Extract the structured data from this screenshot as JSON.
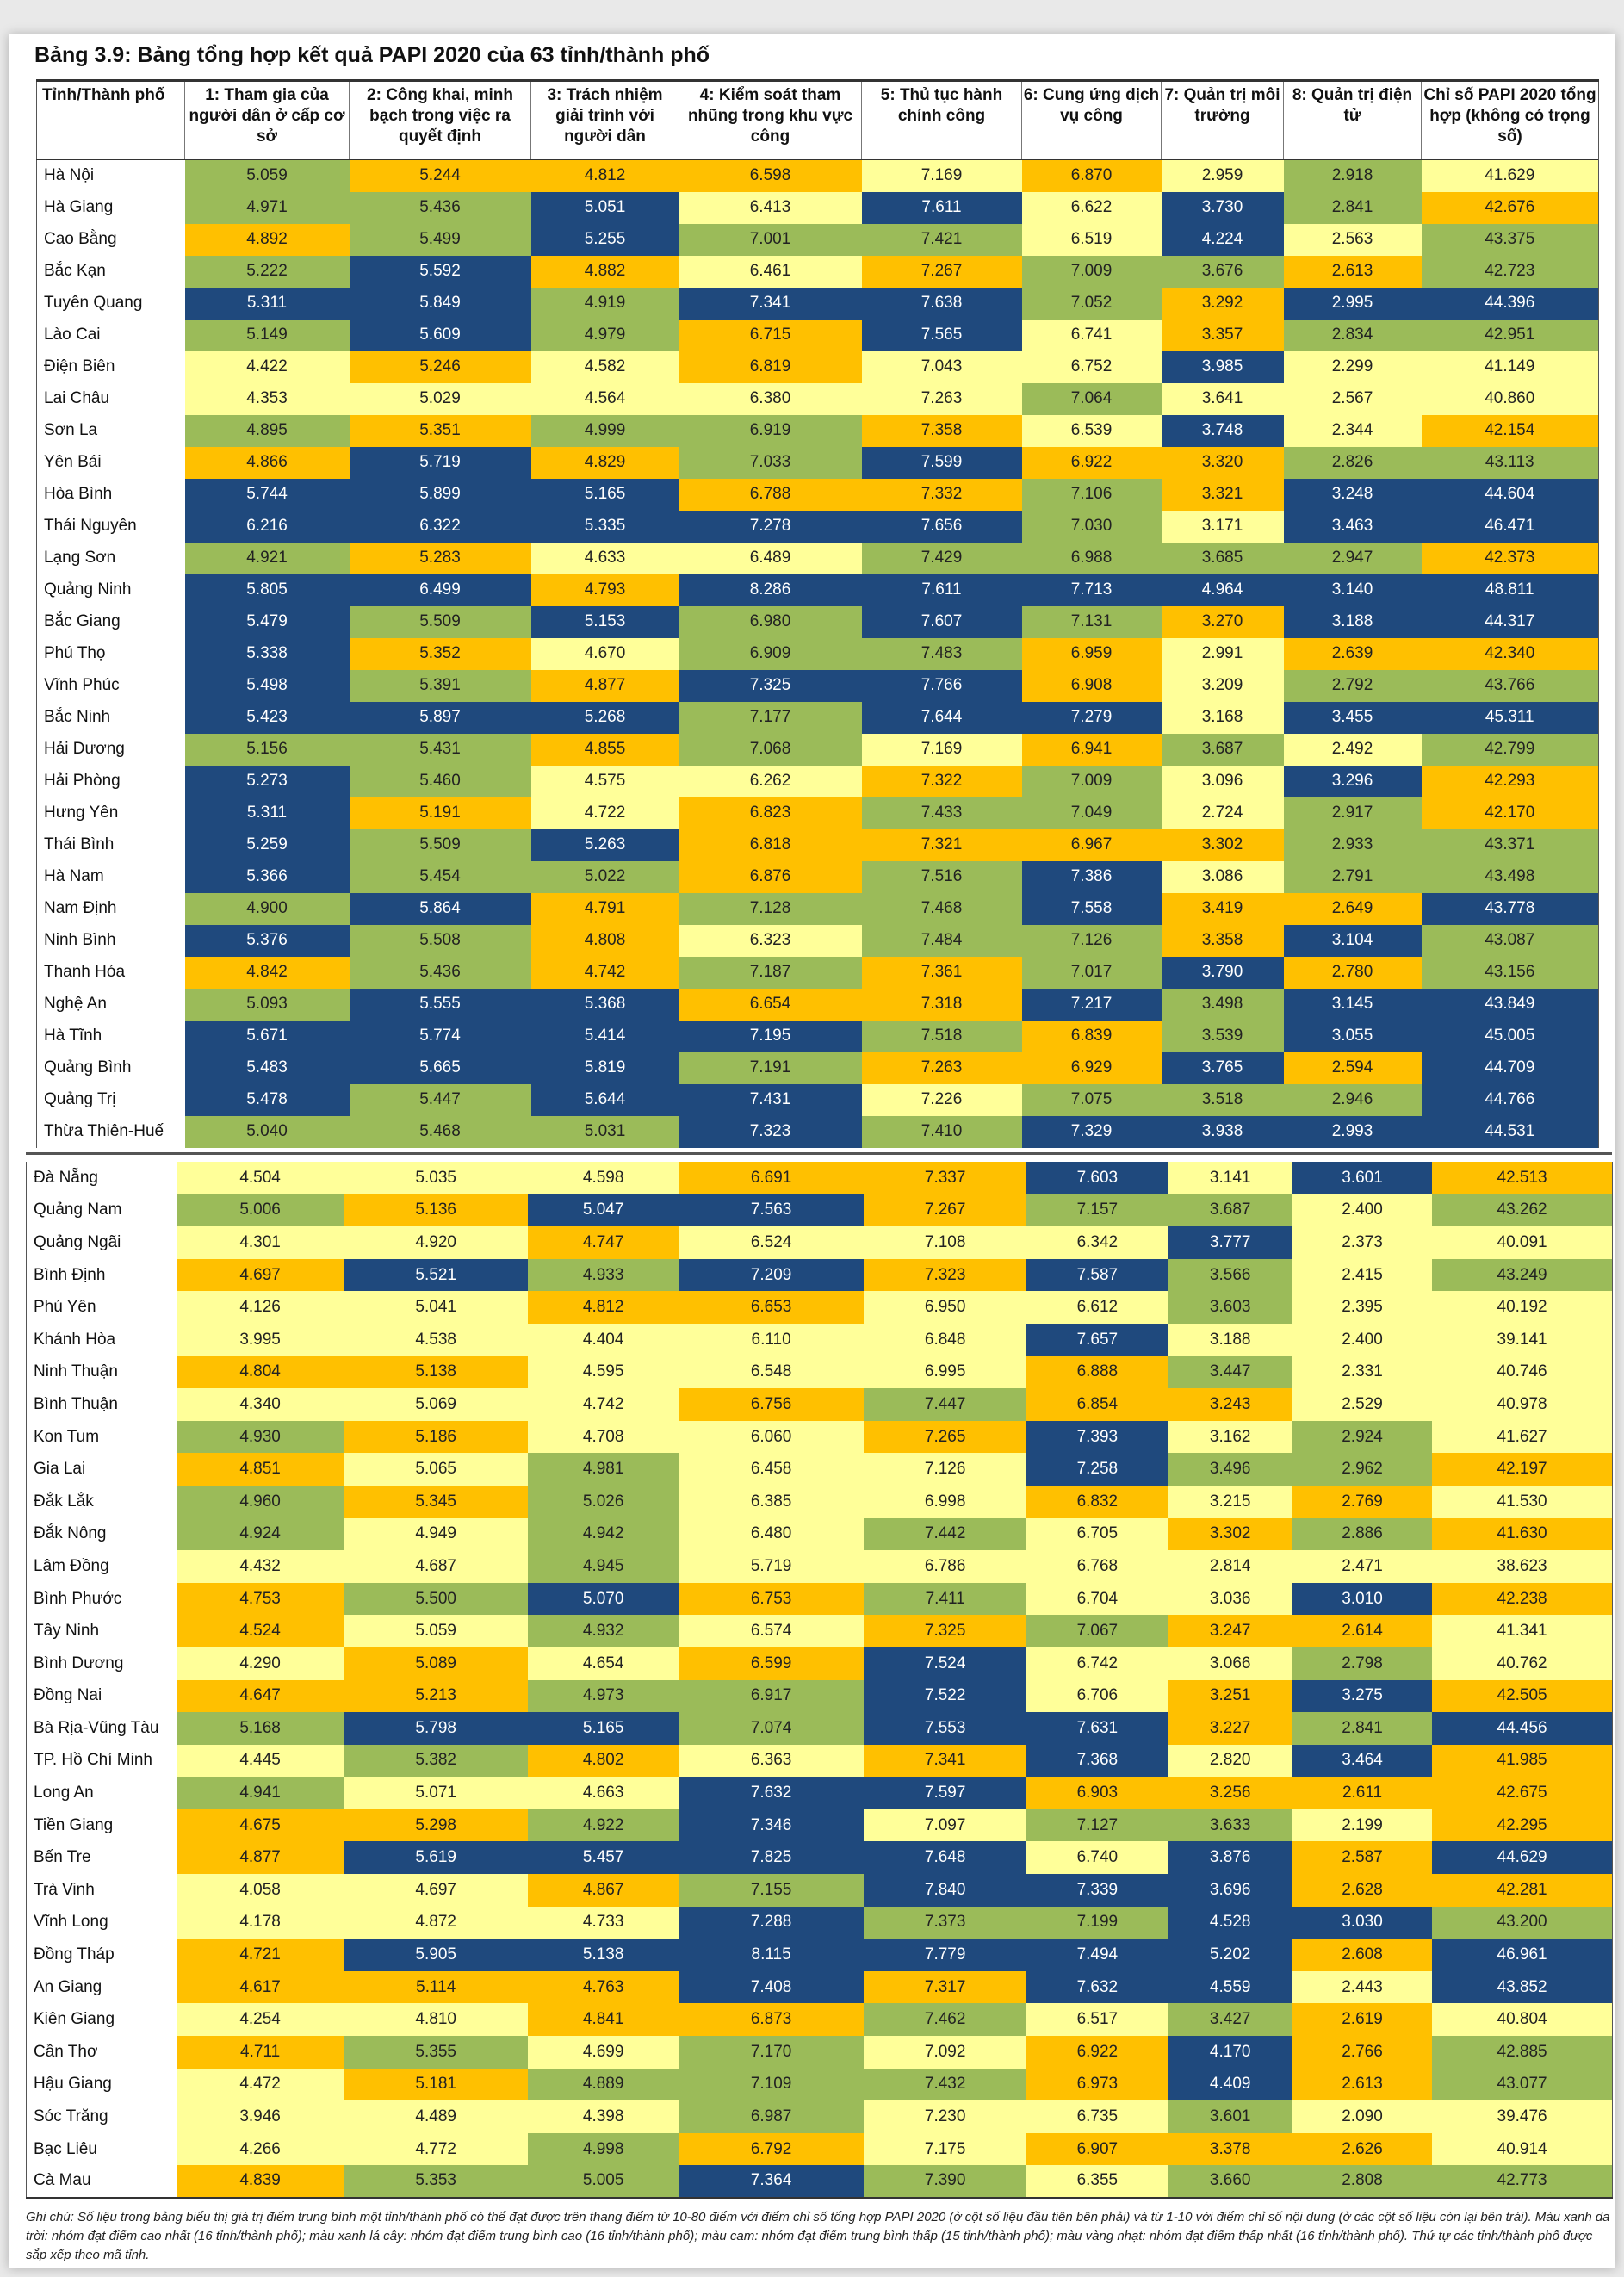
{
  "title": "Bảng 3.9: Bảng tổng hợp kết quả PAPI 2020 của 63 tỉnh/thành phố",
  "colors": {
    "B": "#1f497d",
    "G": "#9bbb59",
    "O": "#ffc000",
    "Y": "#ffff99"
  },
  "headers": [
    "Tỉnh/Thành phố",
    "1: Tham gia của người dân ở cấp cơ sở",
    "2: Công khai, minh bạch trong việc ra quyết định",
    "3: Trách nhiệm giải trình với người dân",
    "4: Kiểm soát tham nhũng trong khu vực công",
    "5: Thủ tục hành chính công",
    "6: Cung ứng dịch vụ công",
    "7: Quản trị môi trường",
    "8: Quản trị điện tử",
    "Chỉ số PAPI 2020 tổng hợp (không có trọng số)"
  ],
  "rows": [
    {
      "name": "Hà Nội",
      "values": [
        "5.059",
        "5.244",
        "4.812",
        "6.598",
        "7.169",
        "6.870",
        "2.959",
        "2.918",
        "41.629"
      ],
      "groups": "GOOOYOYGY"
    },
    {
      "name": "Hà Giang",
      "values": [
        "4.971",
        "5.436",
        "5.051",
        "6.413",
        "7.611",
        "6.622",
        "3.730",
        "2.841",
        "42.676"
      ],
      "groups": "GGBYBYBGO"
    },
    {
      "name": "Cao Bằng",
      "values": [
        "4.892",
        "5.499",
        "5.255",
        "7.001",
        "7.421",
        "6.519",
        "4.224",
        "2.563",
        "43.375"
      ],
      "groups": "OGBGGYBYG"
    },
    {
      "name": "Bắc Kạn",
      "values": [
        "5.222",
        "5.592",
        "4.882",
        "6.461",
        "7.267",
        "7.009",
        "3.676",
        "2.613",
        "42.723"
      ],
      "groups": "GBOYOGGOG"
    },
    {
      "name": "Tuyên Quang",
      "values": [
        "5.311",
        "5.849",
        "4.919",
        "7.341",
        "7.638",
        "7.052",
        "3.292",
        "2.995",
        "44.396"
      ],
      "groups": "BBGBBGOBB"
    },
    {
      "name": "Lào Cai",
      "values": [
        "5.149",
        "5.609",
        "4.979",
        "6.715",
        "7.565",
        "6.741",
        "3.357",
        "2.834",
        "42.951"
      ],
      "groups": "GBGOBYOGG"
    },
    {
      "name": "Điện Biên",
      "values": [
        "4.422",
        "5.246",
        "4.582",
        "6.819",
        "7.043",
        "6.752",
        "3.985",
        "2.299",
        "41.149"
      ],
      "groups": "YOYOYYBYY"
    },
    {
      "name": "Lai Châu",
      "values": [
        "4.353",
        "5.029",
        "4.564",
        "6.380",
        "7.263",
        "7.064",
        "3.641",
        "2.567",
        "40.860"
      ],
      "groups": "YYYYYGYYY"
    },
    {
      "name": "Sơn La",
      "values": [
        "4.895",
        "5.351",
        "4.999",
        "6.919",
        "7.358",
        "6.539",
        "3.748",
        "2.344",
        "42.154"
      ],
      "groups": "GOGGOYBYO"
    },
    {
      "name": "Yên Bái",
      "values": [
        "4.866",
        "5.719",
        "4.829",
        "7.033",
        "7.599",
        "6.922",
        "3.320",
        "2.826",
        "43.113"
      ],
      "groups": "OBOGBOOGG"
    },
    {
      "name": "Hòa Bình",
      "values": [
        "5.744",
        "5.899",
        "5.165",
        "6.788",
        "7.332",
        "7.106",
        "3.321",
        "3.248",
        "44.604"
      ],
      "groups": "BBBOOGOBB"
    },
    {
      "name": "Thái Nguyên",
      "values": [
        "6.216",
        "6.322",
        "5.335",
        "7.278",
        "7.656",
        "7.030",
        "3.171",
        "3.463",
        "46.471"
      ],
      "groups": "BBBBBGYBB"
    },
    {
      "name": "Lạng Sơn",
      "values": [
        "4.921",
        "5.283",
        "4.633",
        "6.489",
        "7.429",
        "6.988",
        "3.685",
        "2.947",
        "42.373"
      ],
      "groups": "GOYYGGGGO"
    },
    {
      "name": "Quảng Ninh",
      "values": [
        "5.805",
        "6.499",
        "4.793",
        "8.286",
        "7.611",
        "7.713",
        "4.964",
        "3.140",
        "48.811"
      ],
      "groups": "BBOBBBBBB"
    },
    {
      "name": "Bắc Giang",
      "values": [
        "5.479",
        "5.509",
        "5.153",
        "6.980",
        "7.607",
        "7.131",
        "3.270",
        "3.188",
        "44.317"
      ],
      "groups": "BGBGBGOBB"
    },
    {
      "name": "Phú Thọ",
      "values": [
        "5.338",
        "5.352",
        "4.670",
        "6.909",
        "7.483",
        "6.959",
        "2.991",
        "2.639",
        "42.340"
      ],
      "groups": "BOYGGOYOO"
    },
    {
      "name": "Vĩnh Phúc",
      "values": [
        "5.498",
        "5.391",
        "4.877",
        "7.325",
        "7.766",
        "6.908",
        "3.209",
        "2.792",
        "43.766"
      ],
      "groups": "BGOBBOYGG"
    },
    {
      "name": "Bắc Ninh",
      "values": [
        "5.423",
        "5.897",
        "5.268",
        "7.177",
        "7.644",
        "7.279",
        "3.168",
        "3.455",
        "45.311"
      ],
      "groups": "BBBGBBYBB"
    },
    {
      "name": "Hải Dương",
      "values": [
        "5.156",
        "5.431",
        "4.855",
        "7.068",
        "7.169",
        "6.941",
        "3.687",
        "2.492",
        "42.799"
      ],
      "groups": "GGOGYOGYG"
    },
    {
      "name": "Hải Phòng",
      "values": [
        "5.273",
        "5.460",
        "4.575",
        "6.262",
        "7.322",
        "7.009",
        "3.096",
        "3.296",
        "42.293"
      ],
      "groups": "BGYYOGYBO"
    },
    {
      "name": "Hưng Yên",
      "values": [
        "5.311",
        "5.191",
        "4.722",
        "6.823",
        "7.433",
        "7.049",
        "2.724",
        "2.917",
        "42.170"
      ],
      "groups": "BOYOGGYGO"
    },
    {
      "name": "Thái Bình",
      "values": [
        "5.259",
        "5.509",
        "5.263",
        "6.818",
        "7.321",
        "6.967",
        "3.302",
        "2.933",
        "43.371"
      ],
      "groups": "BGBOOOOGG"
    },
    {
      "name": "Hà Nam",
      "values": [
        "5.366",
        "5.454",
        "5.022",
        "6.876",
        "7.516",
        "7.386",
        "3.086",
        "2.791",
        "43.498"
      ],
      "groups": "BGGOGBYGG"
    },
    {
      "name": "Nam Định",
      "values": [
        "4.900",
        "5.864",
        "4.791",
        "7.128",
        "7.468",
        "7.558",
        "3.419",
        "2.649",
        "43.778"
      ],
      "groups": "GBOGGBOOB"
    },
    {
      "name": "Ninh Bình",
      "values": [
        "5.376",
        "5.508",
        "4.808",
        "6.323",
        "7.484",
        "7.126",
        "3.358",
        "3.104",
        "43.087"
      ],
      "groups": "BGOYGGOBG"
    },
    {
      "name": "Thanh Hóa",
      "values": [
        "4.842",
        "5.436",
        "4.742",
        "7.187",
        "7.361",
        "7.017",
        "3.790",
        "2.780",
        "43.156"
      ],
      "groups": "OGOGOGBOG"
    },
    {
      "name": "Nghệ An",
      "values": [
        "5.093",
        "5.555",
        "5.368",
        "6.654",
        "7.318",
        "7.217",
        "3.498",
        "3.145",
        "43.849"
      ],
      "groups": "GBBOOBGBB"
    },
    {
      "name": "Hà Tĩnh",
      "values": [
        "5.671",
        "5.774",
        "5.414",
        "7.195",
        "7.518",
        "6.839",
        "3.539",
        "3.055",
        "45.005"
      ],
      "groups": "BBBBGOGBB"
    },
    {
      "name": "Quảng Bình",
      "values": [
        "5.483",
        "5.665",
        "5.819",
        "7.191",
        "7.263",
        "6.929",
        "3.765",
        "2.594",
        "44.709"
      ],
      "groups": "BBBGOOBOB"
    },
    {
      "name": "Quảng Trị",
      "values": [
        "5.478",
        "5.447",
        "5.644",
        "7.431",
        "7.226",
        "7.075",
        "3.518",
        "2.946",
        "44.766"
      ],
      "groups": "BGBBYGGGB"
    },
    {
      "name": "Thừa Thiên-Huế",
      "values": [
        "5.040",
        "5.468",
        "5.031",
        "7.323",
        "7.410",
        "7.329",
        "3.938",
        "2.993",
        "44.531"
      ],
      "groups": "GGGBGBBBB"
    },
    {
      "name": "Đà Nẵng",
      "values": [
        "4.504",
        "5.035",
        "4.598",
        "6.691",
        "7.337",
        "7.603",
        "3.141",
        "3.601",
        "42.513"
      ],
      "groups": "YYYOOBYBO"
    },
    {
      "name": "Quảng Nam",
      "values": [
        "5.006",
        "5.136",
        "5.047",
        "7.563",
        "7.267",
        "7.157",
        "3.687",
        "2.400",
        "43.262"
      ],
      "groups": "GOBBOGGYG"
    },
    {
      "name": "Quảng Ngãi",
      "values": [
        "4.301",
        "4.920",
        "4.747",
        "6.524",
        "7.108",
        "6.342",
        "3.777",
        "2.373",
        "40.091"
      ],
      "groups": "YYOYYYBYY"
    },
    {
      "name": "Bình Định",
      "values": [
        "4.697",
        "5.521",
        "4.933",
        "7.209",
        "7.323",
        "7.587",
        "3.566",
        "2.415",
        "43.249"
      ],
      "groups": "OBGBOBGYG"
    },
    {
      "name": "Phú Yên",
      "values": [
        "4.126",
        "5.041",
        "4.812",
        "6.653",
        "6.950",
        "6.612",
        "3.603",
        "2.395",
        "40.192"
      ],
      "groups": "YYOOYYGYY"
    },
    {
      "name": "Khánh Hòa",
      "values": [
        "3.995",
        "4.538",
        "4.404",
        "6.110",
        "6.848",
        "7.657",
        "3.188",
        "2.400",
        "39.141"
      ],
      "groups": "YYYYYBYYY"
    },
    {
      "name": "Ninh Thuận",
      "values": [
        "4.804",
        "5.138",
        "4.595",
        "6.548",
        "6.995",
        "6.888",
        "3.447",
        "2.331",
        "40.746"
      ],
      "groups": "OOYYYOGYY"
    },
    {
      "name": "Bình Thuận",
      "values": [
        "4.340",
        "5.069",
        "4.742",
        "6.756",
        "7.447",
        "6.854",
        "3.243",
        "2.529",
        "40.978"
      ],
      "groups": "YYYOGOOYY"
    },
    {
      "name": "Kon Tum",
      "values": [
        "4.930",
        "5.186",
        "4.708",
        "6.060",
        "7.265",
        "7.393",
        "3.162",
        "2.924",
        "41.627"
      ],
      "groups": "GOYYOBYGY"
    },
    {
      "name": "Gia Lai",
      "values": [
        "4.851",
        "5.065",
        "4.981",
        "6.458",
        "7.126",
        "7.258",
        "3.496",
        "2.962",
        "42.197"
      ],
      "groups": "OYGYYBGGO"
    },
    {
      "name": "Đắk Lắk",
      "values": [
        "4.960",
        "5.345",
        "5.026",
        "6.385",
        "6.998",
        "6.832",
        "3.215",
        "2.769",
        "41.530"
      ],
      "groups": "GOGYYOYOY"
    },
    {
      "name": "Đắk Nông",
      "values": [
        "4.924",
        "4.949",
        "4.942",
        "6.480",
        "7.442",
        "6.705",
        "3.302",
        "2.886",
        "41.630"
      ],
      "groups": "GYGYGYOGO"
    },
    {
      "name": "Lâm Đồng",
      "values": [
        "4.432",
        "4.687",
        "4.945",
        "5.719",
        "6.786",
        "6.768",
        "2.814",
        "2.471",
        "38.623"
      ],
      "groups": "YYGYYYYYY"
    },
    {
      "name": "Bình Phước",
      "values": [
        "4.753",
        "5.500",
        "5.070",
        "6.753",
        "7.411",
        "6.704",
        "3.036",
        "3.010",
        "42.238"
      ],
      "groups": "OGBOGYYBO"
    },
    {
      "name": "Tây Ninh",
      "values": [
        "4.524",
        "5.059",
        "4.932",
        "6.574",
        "7.325",
        "7.067",
        "3.247",
        "2.614",
        "41.341"
      ],
      "groups": "OYGYOGOOY"
    },
    {
      "name": "Bình Dương",
      "values": [
        "4.290",
        "5.089",
        "4.654",
        "6.599",
        "7.524",
        "6.742",
        "3.066",
        "2.798",
        "40.762"
      ],
      "groups": "YOYOBYYGY"
    },
    {
      "name": "Đồng Nai",
      "values": [
        "4.647",
        "5.213",
        "4.973",
        "6.917",
        "7.522",
        "6.706",
        "3.251",
        "3.275",
        "42.505"
      ],
      "groups": "OOGGBYOBO"
    },
    {
      "name": "Bà Rịa-Vũng Tàu",
      "values": [
        "5.168",
        "5.798",
        "5.165",
        "7.074",
        "7.553",
        "7.631",
        "3.227",
        "2.841",
        "44.456"
      ],
      "groups": "GBBGBBOGB"
    },
    {
      "name": "TP. Hồ Chí Minh",
      "values": [
        "4.445",
        "5.382",
        "4.802",
        "6.363",
        "7.341",
        "7.368",
        "2.820",
        "3.464",
        "41.985"
      ],
      "groups": "YGOYOBYBO"
    },
    {
      "name": "Long An",
      "values": [
        "4.941",
        "5.071",
        "4.663",
        "7.632",
        "7.597",
        "6.903",
        "3.256",
        "2.611",
        "42.675"
      ],
      "groups": "GYYBBOOOO"
    },
    {
      "name": "Tiền Giang",
      "values": [
        "4.675",
        "5.298",
        "4.922",
        "7.346",
        "7.097",
        "7.127",
        "3.633",
        "2.199",
        "42.295"
      ],
      "groups": "OOGBYGGYO"
    },
    {
      "name": "Bến Tre",
      "values": [
        "4.877",
        "5.619",
        "5.457",
        "7.825",
        "7.648",
        "6.740",
        "3.876",
        "2.587",
        "44.629"
      ],
      "groups": "OBBBBYBOB"
    },
    {
      "name": "Trà Vinh",
      "values": [
        "4.058",
        "4.697",
        "4.867",
        "7.155",
        "7.840",
        "7.339",
        "3.696",
        "2.628",
        "42.281"
      ],
      "groups": "YYOGBBBOO"
    },
    {
      "name": "Vĩnh Long",
      "values": [
        "4.178",
        "4.872",
        "4.733",
        "7.288",
        "7.373",
        "7.199",
        "4.528",
        "3.030",
        "43.200"
      ],
      "groups": "YYYBGGBBG"
    },
    {
      "name": "Đồng Tháp",
      "values": [
        "4.721",
        "5.905",
        "5.138",
        "8.115",
        "7.779",
        "7.494",
        "5.202",
        "2.608",
        "46.961"
      ],
      "groups": "OBBBBBBOB"
    },
    {
      "name": "An Giang",
      "values": [
        "4.617",
        "5.114",
        "4.763",
        "7.408",
        "7.317",
        "7.632",
        "4.559",
        "2.443",
        "43.852"
      ],
      "groups": "OOOBOBBYB"
    },
    {
      "name": "Kiên Giang",
      "values": [
        "4.254",
        "4.810",
        "4.841",
        "6.873",
        "7.462",
        "6.517",
        "3.427",
        "2.619",
        "40.804"
      ],
      "groups": "YYOOGYGOY"
    },
    {
      "name": "Cần Thơ",
      "values": [
        "4.711",
        "5.355",
        "4.699",
        "7.170",
        "7.092",
        "6.922",
        "4.170",
        "2.766",
        "42.885"
      ],
      "groups": "OGYGYOBOG"
    },
    {
      "name": "Hậu Giang",
      "values": [
        "4.472",
        "5.181",
        "4.889",
        "7.109",
        "7.432",
        "6.973",
        "4.409",
        "2.613",
        "43.077"
      ],
      "groups": "YOGGGOBOG"
    },
    {
      "name": "Sóc Trăng",
      "values": [
        "3.946",
        "4.489",
        "4.398",
        "6.987",
        "7.230",
        "6.735",
        "3.601",
        "2.090",
        "39.476"
      ],
      "groups": "YYYGYYGYY"
    },
    {
      "name": "Bạc Liêu",
      "values": [
        "4.266",
        "4.772",
        "4.998",
        "6.792",
        "7.175",
        "6.907",
        "3.378",
        "2.626",
        "40.914"
      ],
      "groups": "YYGOYOOOY"
    },
    {
      "name": "Cà Mau",
      "values": [
        "4.839",
        "5.353",
        "5.005",
        "7.364",
        "7.390",
        "6.355",
        "3.660",
        "2.808",
        "42.773"
      ],
      "groups": "OGGBGYGGG"
    }
  ],
  "note": "Ghi chú: Số liệu trong bảng biểu thị giá trị điểm trung bình một tỉnh/thành phố có thể đạt được trên thang điểm từ 10-80 điểm với điểm chỉ số tổng hợp PAPI 2020 (ở cột số liệu đầu tiên bên phải) và từ 1-10 với điểm chỉ số nội dung (ở các cột số liệu còn lại bên trái). Màu xanh da trời: nhóm đạt điểm cao nhất (16 tỉnh/thành phố); màu xanh lá cây: nhóm đạt điểm trung bình cao (16 tỉnh/thành phố); màu cam: nhóm đạt điểm trung bình thấp (15 tỉnh/thành phố); màu vàng nhạt: nhóm đạt điểm thấp nhất (16 tỉnh/thành phố). Thứ tự các tỉnh/thành phố được sắp xếp theo mã tỉnh."
}
